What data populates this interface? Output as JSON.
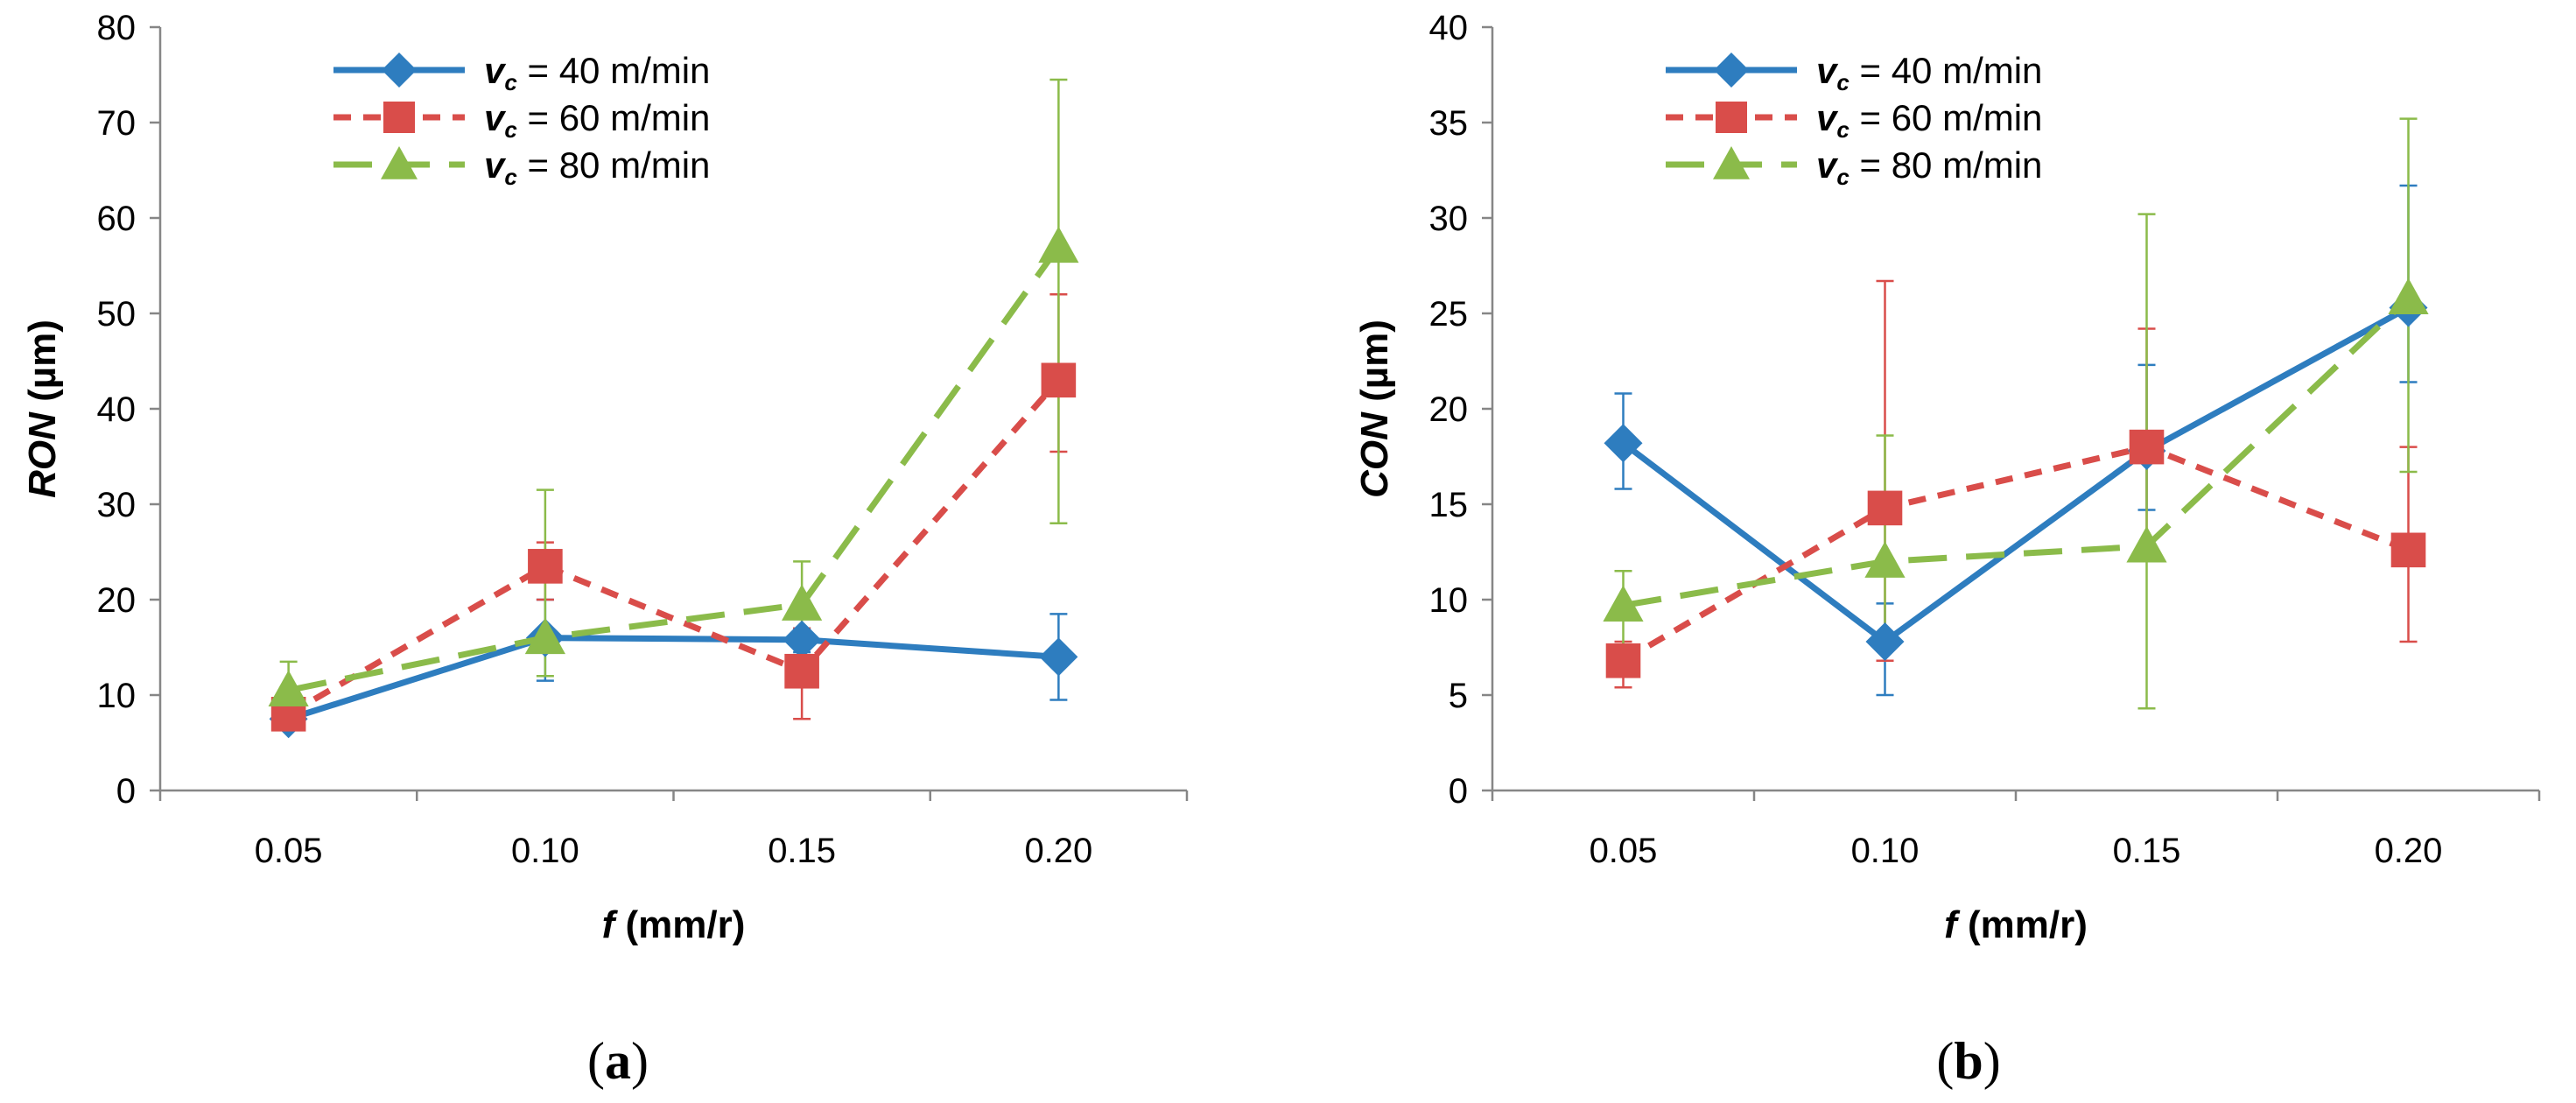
{
  "chart_data": [
    {
      "type": "line",
      "panel_label_open": "(",
      "panel_label": "a",
      "panel_label_close": ")",
      "ylabel_italic": "RON",
      "ylabel_rest": " (µm)",
      "xlabel_italic": "f",
      "xlabel_rest": " (mm/r)",
      "x_ticks": [
        "0.05",
        "0.10",
        "0.15",
        "0.20"
      ],
      "ylim": [
        0,
        80
      ],
      "y_ticks": [
        "0",
        "10",
        "20",
        "30",
        "40",
        "50",
        "60",
        "70",
        "80"
      ],
      "legend_position": "top-left",
      "series": [
        {
          "name_prefix": "v",
          "name_sub": "c",
          "name_rest": " = 40 m/min",
          "color": "#2e7dbf",
          "dash": "solid",
          "marker": "diamond",
          "values": [
            7.5,
            16,
            15.8,
            14
          ],
          "err_low": [
            7,
            11.5,
            14.5,
            9.5
          ],
          "err_high": [
            8.5,
            20,
            17,
            18.5
          ]
        },
        {
          "name_prefix": "v",
          "name_sub": "c",
          "name_rest": " = 60 m/min",
          "color": "#d94d4a",
          "dash": "short",
          "marker": "square",
          "values": [
            8,
            23.5,
            12.5,
            43
          ],
          "err_low": [
            7,
            20,
            7.5,
            35.5
          ],
          "err_high": [
            9,
            26,
            17,
            52
          ]
        },
        {
          "name_prefix": "v",
          "name_sub": "c",
          "name_rest": " = 80 m/min",
          "color": "#8bbb4a",
          "dash": "long",
          "marker": "triangle",
          "values": [
            10.5,
            16,
            19.5,
            57
          ],
          "err_low": [
            8,
            12,
            16,
            28
          ],
          "err_high": [
            13.5,
            31.5,
            24,
            74.5
          ]
        }
      ]
    },
    {
      "type": "line",
      "panel_label_open": "(",
      "panel_label": "b",
      "panel_label_close": ")",
      "ylabel_italic": "CON",
      "ylabel_rest": " (µm)",
      "xlabel_italic": "f",
      "xlabel_rest": " (mm/r)",
      "x_ticks": [
        "0.05",
        "0.10",
        "0.15",
        "0.20"
      ],
      "ylim": [
        0,
        40
      ],
      "y_ticks": [
        "0",
        "5",
        "10",
        "15",
        "20",
        "25",
        "30",
        "35",
        "40"
      ],
      "legend_position": "top-left",
      "series": [
        {
          "name_prefix": "v",
          "name_sub": "c",
          "name_rest": " = 40 m/min",
          "color": "#2e7dbf",
          "dash": "solid",
          "marker": "diamond",
          "values": [
            18.2,
            7.8,
            17.8,
            25.3
          ],
          "err_low": [
            15.8,
            5,
            14.7,
            21.4
          ],
          "err_high": [
            20.8,
            9.8,
            22.3,
            31.7
          ]
        },
        {
          "name_prefix": "v",
          "name_sub": "c",
          "name_rest": " = 60 m/min",
          "color": "#d94d4a",
          "dash": "short",
          "marker": "square",
          "values": [
            6.8,
            14.8,
            18,
            12.6
          ],
          "err_low": [
            5.4,
            6.8,
            12.5,
            7.8
          ],
          "err_high": [
            7.8,
            26.7,
            24.2,
            18
          ]
        },
        {
          "name_prefix": "v",
          "name_sub": "c",
          "name_rest": " = 80 m/min",
          "color": "#8bbb4a",
          "dash": "long",
          "marker": "triangle",
          "values": [
            9.7,
            12,
            12.8,
            25.8
          ],
          "err_low": [
            7.6,
            7.5,
            4.3,
            16.7
          ],
          "err_high": [
            11.5,
            18.6,
            30.2,
            35.2
          ]
        }
      ]
    }
  ]
}
